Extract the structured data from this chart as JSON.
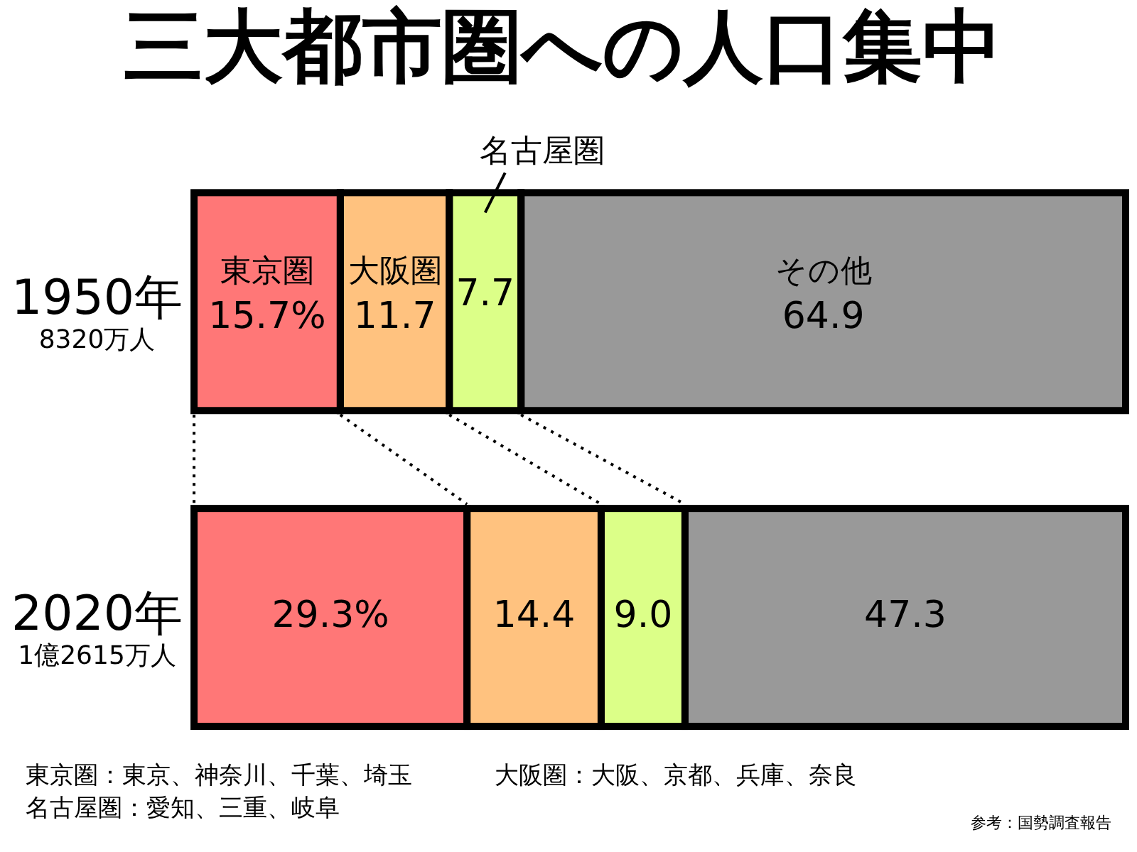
{
  "chart_data": {
    "type": "bar",
    "title": "三大都市圏への人口集中",
    "orientation": "horizontal",
    "stacked": true,
    "categories": [
      "1950年",
      "2020年"
    ],
    "series": [
      {
        "name": "東京圏",
        "color": "#ff7777",
        "values": [
          15.7,
          29.3
        ],
        "value_labels": [
          "15.7%",
          "29.3%"
        ]
      },
      {
        "name": "大阪圏",
        "color": "#ffc27f",
        "values": [
          11.7,
          14.4
        ],
        "value_labels": [
          "11.7",
          "14.4"
        ]
      },
      {
        "name": "名古屋圏",
        "color": "#dcff88",
        "values": [
          7.7,
          9.0
        ],
        "value_labels": [
          "7.7",
          "9.0"
        ]
      },
      {
        "name": "その他",
        "color": "#999999",
        "values": [
          64.9,
          47.3
        ],
        "value_labels": [
          "64.9",
          "47.3"
        ]
      }
    ],
    "xlim": [
      0,
      100
    ],
    "tick_labels": "y",
    "legend": false,
    "grid": false,
    "annotations": [
      "8320万人",
      "1億2615万人",
      "東京圏：東京、神奈川、千葉、埼玉",
      "大阪圏：大阪、京都、兵庫、奈良",
      "名古屋圏：愛知、三重、岐阜",
      "参考：国勢調査報告"
    ]
  }
}
